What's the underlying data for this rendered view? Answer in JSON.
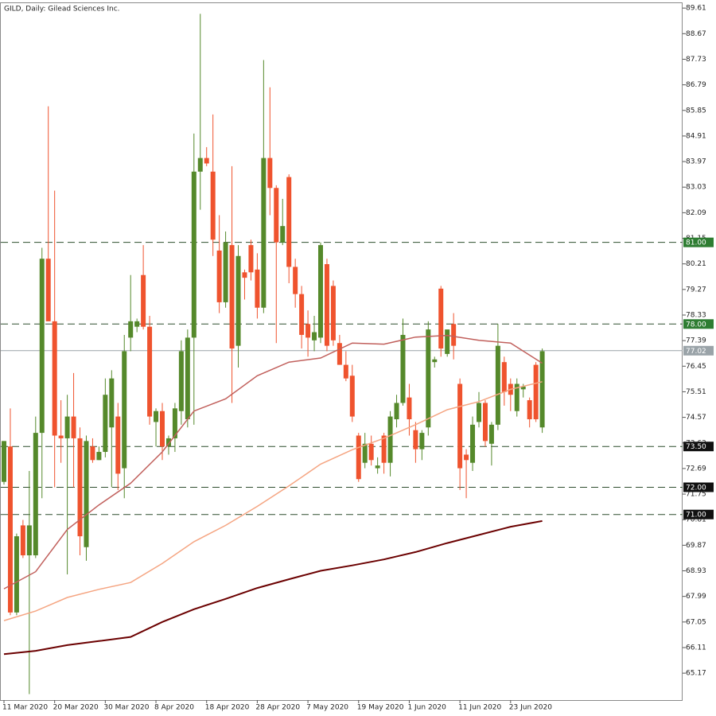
{
  "chart_data": {
    "type": "candlestick",
    "title": "GILD, Daily:  Gilead Sciences Inc.",
    "categories": [
      "11 Mar 2020",
      null,
      null,
      null,
      null,
      null,
      null,
      null,
      "20 Mar 2020",
      null,
      null,
      null,
      null,
      null,
      null,
      null,
      "30 Mar 2020",
      null,
      null,
      null,
      null,
      null,
      null,
      null,
      "8 Apr 2020",
      null,
      null,
      null,
      null,
      null,
      null,
      null,
      "18 Apr 2020",
      null,
      null,
      null,
      null,
      null,
      null,
      null,
      "28 Apr 2020",
      null,
      null,
      null,
      null,
      null,
      null,
      null,
      "7 May 2020",
      null,
      null,
      null,
      null,
      null,
      null,
      null,
      "19 May 2020",
      null,
      null,
      null,
      null,
      null,
      null,
      null,
      "1 Jun 2020",
      null,
      null,
      null,
      null,
      null,
      null,
      null,
      "11 Jun 2020",
      null,
      null,
      null,
      null,
      null,
      null,
      null,
      "23 Jun 2020",
      null,
      null,
      null,
      null,
      null
    ],
    "open": [
      72.2,
      73.5,
      67.4,
      70.6,
      69.5,
      69.5,
      74.0,
      80.4,
      78.1,
      73.9,
      73.8,
      74.6,
      73.8,
      69.8,
      73.5,
      73.0,
      73.3,
      74.2,
      74.6,
      72.7,
      77.5,
      77.9,
      79.8,
      77.9,
      74.4,
      74.8,
      73.5,
      73.8,
      74.8,
      74.5,
      77.5,
      83.6,
      84.1,
      83.6,
      80.7,
      78.8,
      80.9,
      77.2,
      79.9,
      80.9,
      80.0,
      78.6,
      84.1,
      83.0,
      81.0,
      83.4,
      80.1,
      79.1,
      78.0,
      77.4,
      77.5,
      80.2,
      79.4,
      77.3,
      76.5,
      76.1,
      73.9,
      72.9,
      73.6,
      72.7,
      73.9,
      72.9,
      74.5,
      75.1,
      75.3,
      74.1,
      73.4,
      74.2,
      76.6,
      79.3,
      76.9,
      78.0,
      75.8,
      73.2,
      72.9,
      74.4,
      75.1,
      73.6,
      74.3,
      76.6,
      75.8,
      74.8,
      75.6,
      75.2,
      76.5,
      74.2
    ],
    "high": [
      73.7,
      74.9,
      70.3,
      70.8,
      72.6,
      74.6,
      80.8,
      86.0,
      82.9,
      75.2,
      75.4,
      76.2,
      74.2,
      73.9,
      73.8,
      73.5,
      76.0,
      76.3,
      75.1,
      77.6,
      79.8,
      78.2,
      80.9,
      78.3,
      74.9,
      75.1,
      73.9,
      75.1,
      77.4,
      77.8,
      85.0,
      89.4,
      84.5,
      85.7,
      82.0,
      81.4,
      83.8,
      80.9,
      80.0,
      81.1,
      80.6,
      87.7,
      86.7,
      83.1,
      82.6,
      83.5,
      80.4,
      79.4,
      78.5,
      78.3,
      81.0,
      80.4,
      79.6,
      77.6,
      77.0,
      76.5,
      74.0,
      74.0,
      73.9,
      73.1,
      74.0,
      74.8,
      75.4,
      78.2,
      75.8,
      74.4,
      74.1,
      78.1,
      76.8,
      79.4,
      77.6,
      78.4,
      76.0,
      73.4,
      74.6,
      75.5,
      75.2,
      74.4,
      78.0,
      76.8,
      76.0,
      76.0,
      75.8,
      75.3,
      76.6,
      77.1
    ],
    "low": [
      72.1,
      67.3,
      67.3,
      69.4,
      64.4,
      69.4,
      71.6,
      78.2,
      72.0,
      72.9,
      68.8,
      72.0,
      69.5,
      69.3,
      72.9,
      73.0,
      73.1,
      72.0,
      71.9,
      71.6,
      77.0,
      77.7,
      77.8,
      74.3,
      73.5,
      73.0,
      73.2,
      73.3,
      74.3,
      74.2,
      74.3,
      82.2,
      83.8,
      80.5,
      78.4,
      78.6,
      75.1,
      76.4,
      78.9,
      79.6,
      78.2,
      78.4,
      82.0,
      77.3,
      80.9,
      79.5,
      78.6,
      77.1,
      76.8,
      77.0,
      77.3,
      77.0,
      77.2,
      76.5,
      75.9,
      74.4,
      72.2,
      72.7,
      72.8,
      72.5,
      72.5,
      72.4,
      74.2,
      75.0,
      73.9,
      72.9,
      73.0,
      73.9,
      76.4,
      76.8,
      76.8,
      76.7,
      71.9,
      71.6,
      72.6,
      74.2,
      73.5,
      72.8,
      74.1,
      75.0,
      74.8,
      74.6,
      75.3,
      74.2,
      74.4,
      74.0
    ],
    "close": [
      73.7,
      67.4,
      70.2,
      69.5,
      70.6,
      74.0,
      80.4,
      78.1,
      73.9,
      73.8,
      74.6,
      73.8,
      70.2,
      73.7,
      73.0,
      73.3,
      75.4,
      76.0,
      72.5,
      77.0,
      78.1,
      78.1,
      77.9,
      74.6,
      74.8,
      73.5,
      73.8,
      74.9,
      77.0,
      77.5,
      83.6,
      84.1,
      83.9,
      81.1,
      78.8,
      81.0,
      77.1,
      80.5,
      79.7,
      79.9,
      78.6,
      84.1,
      83.0,
      81.0,
      81.6,
      80.1,
      79.1,
      77.6,
      77.5,
      77.7,
      80.9,
      77.2,
      77.4,
      76.5,
      76.0,
      74.6,
      72.3,
      73.6,
      73.0,
      72.8,
      72.9,
      74.6,
      75.1,
      77.6,
      74.5,
      73.4,
      74.0,
      77.8,
      76.7,
      77.1,
      77.8,
      77.2,
      72.7,
      73.0,
      74.3,
      75.1,
      73.7,
      74.3,
      77.2,
      75.5,
      75.4,
      75.8,
      75.7,
      74.5,
      74.5,
      77.0
    ],
    "up_color": "#55892b",
    "down_color": "#ef532e",
    "ylim": [
      64.18,
      89.79
    ],
    "yticks": [
      89.61,
      88.67,
      87.73,
      86.79,
      85.85,
      84.91,
      83.97,
      83.03,
      82.09,
      81.15,
      80.21,
      79.27,
      78.33,
      77.39,
      76.45,
      75.51,
      74.57,
      73.63,
      72.69,
      71.75,
      70.81,
      69.87,
      68.93,
      67.99,
      67.05,
      66.11,
      65.17
    ],
    "moving_averages": [
      {
        "color": "#6b0000",
        "x": [
          0,
          5,
          10,
          15,
          20,
          25,
          30,
          35,
          40,
          45,
          50,
          55,
          60,
          65,
          70,
          75,
          80,
          85
        ],
        "values": [
          65.87,
          65.99,
          66.2,
          66.35,
          66.5,
          67.05,
          67.52,
          67.9,
          68.3,
          68.62,
          68.93,
          69.13,
          69.35,
          69.62,
          69.95,
          70.25,
          70.55,
          70.76
        ]
      },
      {
        "color": "#f5a582",
        "x": [
          0,
          5,
          10,
          15,
          20,
          25,
          30,
          35,
          40,
          45,
          50,
          55,
          60,
          65,
          70,
          75,
          80,
          85
        ],
        "values": [
          67.1,
          67.45,
          67.95,
          68.25,
          68.5,
          69.2,
          70.0,
          70.6,
          71.3,
          72.05,
          72.85,
          73.38,
          73.8,
          74.3,
          74.85,
          75.15,
          75.6,
          75.88
        ]
      },
      {
        "color": "#c1605c",
        "x": [
          0,
          5,
          10,
          15,
          20,
          25,
          30,
          35,
          40,
          45,
          50,
          55,
          60,
          65,
          70,
          75,
          80,
          85
        ],
        "values": [
          68.27,
          68.9,
          70.45,
          71.35,
          72.15,
          73.3,
          74.8,
          75.25,
          76.1,
          76.6,
          76.75,
          77.3,
          77.26,
          77.52,
          77.58,
          77.4,
          77.3,
          76.56
        ]
      }
    ],
    "levels": [
      {
        "value": 81,
        "label": "81.00",
        "color": "#2e7d32"
      },
      {
        "value": 78,
        "label": "78.00",
        "color": "#2e7d32"
      },
      {
        "value": 73.5,
        "label": "73.50",
        "color": "#111111"
      },
      {
        "value": 72,
        "label": "72.00",
        "color": "#111111"
      },
      {
        "value": 71,
        "label": "71.00",
        "color": "#111111"
      }
    ],
    "last_price": {
      "value": 77.02,
      "label": "77.02",
      "color": "#9aa3a8"
    }
  }
}
